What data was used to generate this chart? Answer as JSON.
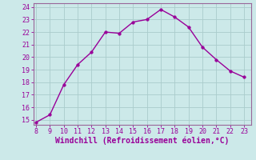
{
  "x": [
    8,
    9,
    10,
    11,
    12,
    13,
    14,
    15,
    16,
    17,
    18,
    19,
    20,
    21,
    22,
    23
  ],
  "y": [
    14.8,
    15.4,
    17.8,
    19.4,
    20.4,
    22.0,
    21.9,
    22.8,
    23.0,
    23.8,
    23.2,
    22.4,
    20.8,
    19.8,
    18.9,
    18.4
  ],
  "xlim": [
    8,
    23
  ],
  "ylim": [
    15,
    24
  ],
  "xticks": [
    8,
    9,
    10,
    11,
    12,
    13,
    14,
    15,
    16,
    17,
    18,
    19,
    20,
    21,
    22,
    23
  ],
  "yticks": [
    15,
    16,
    17,
    18,
    19,
    20,
    21,
    22,
    23,
    24
  ],
  "xlabel": "Windchill (Refroidissement éolien,°C)",
  "line_color": "#990099",
  "marker": "o",
  "marker_size": 2.5,
  "bg_color": "#cce9e9",
  "grid_color": "#aacccc",
  "spine_color": "#996699",
  "tick_color": "#990099",
  "label_color": "#990099",
  "tick_fontsize": 6.0,
  "xlabel_fontsize": 7.0,
  "linewidth": 1.0
}
